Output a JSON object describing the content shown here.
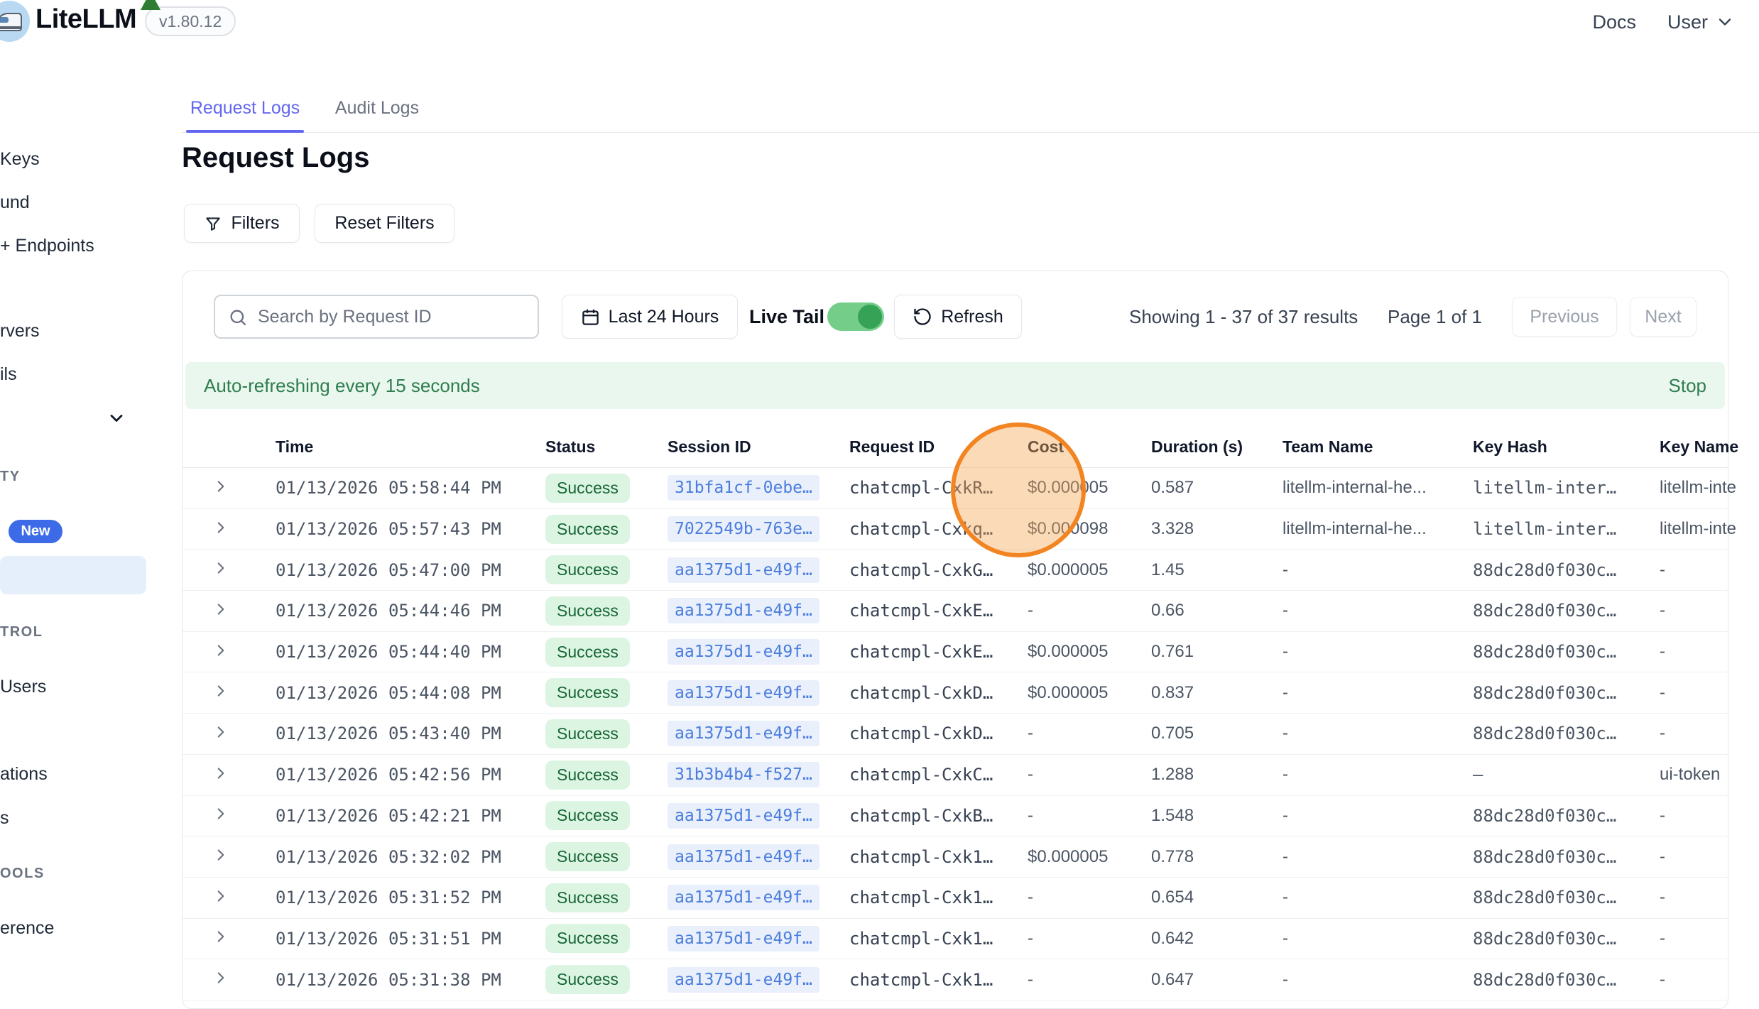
{
  "topbar": {
    "brand": "LiteLLM",
    "version": "v1.80.12",
    "docs_label": "Docs",
    "user_label": "User"
  },
  "sidebar": {
    "items": [
      {
        "label": "Keys",
        "kind": "item"
      },
      {
        "label": "und",
        "kind": "item"
      },
      {
        "label": "+ Endpoints",
        "kind": "item"
      },
      {
        "label": "rvers",
        "kind": "item"
      },
      {
        "label": "ils",
        "kind": "item"
      },
      {
        "label": "",
        "kind": "chevron"
      },
      {
        "label": "TY",
        "kind": "section"
      },
      {
        "label": "New",
        "kind": "badge"
      },
      {
        "label": "",
        "kind": "selected"
      },
      {
        "label": "TROL",
        "kind": "section"
      },
      {
        "label": "Users",
        "kind": "item"
      },
      {
        "label": "ations",
        "kind": "item"
      },
      {
        "label": "s",
        "kind": "item"
      },
      {
        "label": "OOLS",
        "kind": "section"
      },
      {
        "label": "erence",
        "kind": "item"
      }
    ]
  },
  "tabs": [
    {
      "label": "Request Logs",
      "active": true
    },
    {
      "label": "Audit Logs",
      "active": false
    }
  ],
  "page": {
    "title": "Request Logs"
  },
  "toolbar": {
    "filters_label": "Filters",
    "reset_filters_label": "Reset Filters"
  },
  "controls": {
    "search_placeholder": "Search by Request ID",
    "date_range_label": "Last 24 Hours",
    "live_tail_label": "Live Tail",
    "live_tail_on": true,
    "refresh_label": "Refresh",
    "results_summary": "Showing 1 - 37 of 37 results",
    "page_indicator": "Page 1 of 1",
    "previous_label": "Previous",
    "next_label": "Next"
  },
  "banner": {
    "message": "Auto-refreshing every 15 seconds",
    "stop_label": "Stop"
  },
  "table": {
    "columns": [
      "Time",
      "Status",
      "Session ID",
      "Request ID",
      "Cost",
      "Duration (s)",
      "Team Name",
      "Key Hash",
      "Key Name"
    ],
    "rows": [
      {
        "time": "01/13/2026 05:58:44 PM",
        "status": "Success",
        "session": "31bfa1cf-0ebe…",
        "request": "chatcmpl-CxkR…",
        "cost": "$0.000005",
        "duration": "0.587",
        "team": "litellm-internal-he...",
        "key_hash": "litellm-inter…",
        "key_name": "litellm-inte"
      },
      {
        "time": "01/13/2026 05:57:43 PM",
        "status": "Success",
        "session": "7022549b-763e…",
        "request": "chatcmpl-Cxkq…",
        "cost": "$0.000098",
        "duration": "3.328",
        "team": "litellm-internal-he...",
        "key_hash": "litellm-inter…",
        "key_name": "litellm-inte"
      },
      {
        "time": "01/13/2026 05:47:00 PM",
        "status": "Success",
        "session": "aa1375d1-e49f…",
        "request": "chatcmpl-CxkG…",
        "cost": "$0.000005",
        "duration": "1.45",
        "team": "-",
        "key_hash": "88dc28d0f030c…",
        "key_name": "-"
      },
      {
        "time": "01/13/2026 05:44:46 PM",
        "status": "Success",
        "session": "aa1375d1-e49f…",
        "request": "chatcmpl-CxkE…",
        "cost": "-",
        "duration": "0.66",
        "team": "-",
        "key_hash": "88dc28d0f030c…",
        "key_name": "-"
      },
      {
        "time": "01/13/2026 05:44:40 PM",
        "status": "Success",
        "session": "aa1375d1-e49f…",
        "request": "chatcmpl-CxkE…",
        "cost": "$0.000005",
        "duration": "0.761",
        "team": "-",
        "key_hash": "88dc28d0f030c…",
        "key_name": "-"
      },
      {
        "time": "01/13/2026 05:44:08 PM",
        "status": "Success",
        "session": "aa1375d1-e49f…",
        "request": "chatcmpl-CxkD…",
        "cost": "$0.000005",
        "duration": "0.837",
        "team": "-",
        "key_hash": "88dc28d0f030c…",
        "key_name": "-"
      },
      {
        "time": "01/13/2026 05:43:40 PM",
        "status": "Success",
        "session": "aa1375d1-e49f…",
        "request": "chatcmpl-CxkD…",
        "cost": "-",
        "duration": "0.705",
        "team": "-",
        "key_hash": "88dc28d0f030c…",
        "key_name": "-"
      },
      {
        "time": "01/13/2026 05:42:56 PM",
        "status": "Success",
        "session": "31b3b4b4-f527…",
        "request": "chatcmpl-CxkC…",
        "cost": "-",
        "duration": "1.288",
        "team": "-",
        "key_hash": "–",
        "key_name": "ui-token"
      },
      {
        "time": "01/13/2026 05:42:21 PM",
        "status": "Success",
        "session": "aa1375d1-e49f…",
        "request": "chatcmpl-CxkB…",
        "cost": "-",
        "duration": "1.548",
        "team": "-",
        "key_hash": "88dc28d0f030c…",
        "key_name": "-"
      },
      {
        "time": "01/13/2026 05:32:02 PM",
        "status": "Success",
        "session": "aa1375d1-e49f…",
        "request": "chatcmpl-Cxk1…",
        "cost": "$0.000005",
        "duration": "0.778",
        "team": "-",
        "key_hash": "88dc28d0f030c…",
        "key_name": "-"
      },
      {
        "time": "01/13/2026 05:31:52 PM",
        "status": "Success",
        "session": "aa1375d1-e49f…",
        "request": "chatcmpl-Cxk1…",
        "cost": "-",
        "duration": "0.654",
        "team": "-",
        "key_hash": "88dc28d0f030c…",
        "key_name": "-"
      },
      {
        "time": "01/13/2026 05:31:51 PM",
        "status": "Success",
        "session": "aa1375d1-e49f…",
        "request": "chatcmpl-Cxk1…",
        "cost": "-",
        "duration": "0.642",
        "team": "-",
        "key_hash": "88dc28d0f030c…",
        "key_name": "-"
      },
      {
        "time": "01/13/2026 05:31:38 PM",
        "status": "Success",
        "session": "aa1375d1-e49f…",
        "request": "chatcmpl-Cxk1…",
        "cost": "-",
        "duration": "0.647",
        "team": "-",
        "key_hash": "88dc28d0f030c…",
        "key_name": "-"
      }
    ]
  },
  "annotation": {
    "shape": "click-indicator-circle"
  },
  "colors": {
    "accent": "#6366f1",
    "success_bg": "#dcf5e3",
    "success_text": "#166534",
    "link_blue": "#4a7ddd",
    "session_bg": "#e9effb",
    "banner_bg": "#eaf7ee",
    "banner_text": "#2f7d4f",
    "badge_new_bg": "#3d6be8",
    "selected_bg": "#e5effc",
    "indicator_ring": "#f28522",
    "toggle_track": "#74cd89",
    "toggle_knob": "#35a255"
  }
}
